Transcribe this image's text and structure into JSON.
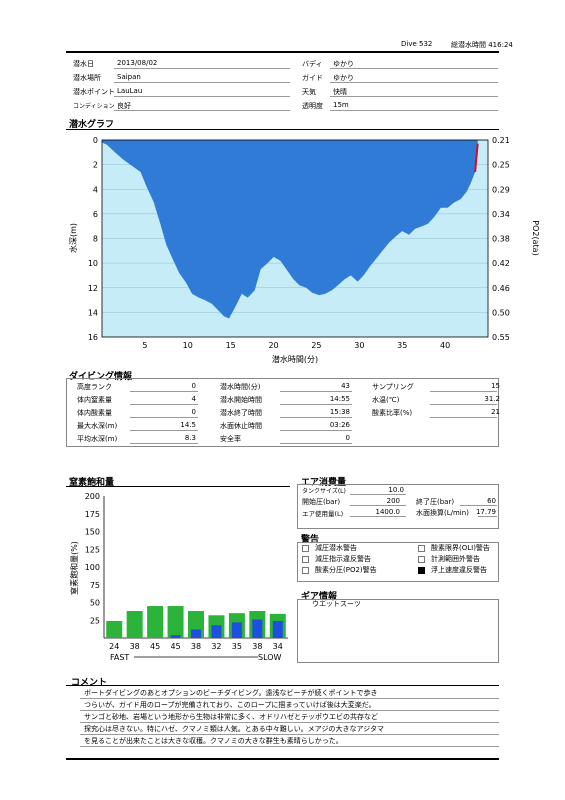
{
  "header": {
    "dive_label": "Dive 532",
    "total_label": "総潜水時間 416:24"
  },
  "info": {
    "date": {
      "label": "潜水日",
      "value": "2013/08/02"
    },
    "place": {
      "label": "潜水場所",
      "value": "Saipan"
    },
    "point": {
      "label": "潜水ポイント",
      "value": "LauLau"
    },
    "condition": {
      "label": "コンディション",
      "value": "良好"
    },
    "buddy": {
      "label": "バディ",
      "value": "ゆかり"
    },
    "guide": {
      "label": "ガイド",
      "value": "ゆかり"
    },
    "weather": {
      "label": "天気",
      "value": "快晴"
    },
    "visibility": {
      "label": "透明度",
      "value": "15m"
    }
  },
  "graph": {
    "title": "潜水グラフ",
    "chart_data": {
      "type": "area",
      "xlabel": "潜水時間(分)",
      "ylabel": "水深(m)",
      "y2label": "PO2(ata)",
      "xlim": [
        0,
        45
      ],
      "ylim": [
        16,
        0
      ],
      "xticks": [
        "5",
        "10",
        "15",
        "20",
        "25",
        "30",
        "35",
        "40"
      ],
      "yticks": [
        "0",
        "2",
        "4",
        "6",
        "8",
        "10",
        "12",
        "14",
        "16"
      ],
      "y2ticks": [
        "0.21",
        "0.25",
        "0.29",
        "0.34",
        "0.38",
        "0.42",
        "0.46",
        "0.50",
        "0.55"
      ],
      "series": [
        {
          "x": [
            0,
            0.6,
            1.5,
            2.5,
            3.5,
            4.5,
            5.2,
            6,
            6.8,
            7.5,
            8.2,
            9,
            9.8,
            10.5,
            11.3,
            12,
            12.8,
            13.5,
            14.2,
            14.8,
            15.5,
            16.3,
            17,
            17.8,
            18.5,
            19.3,
            20,
            20.8,
            21.5,
            22.3,
            23,
            23.8,
            24.5,
            25.3,
            26,
            26.8,
            27.5,
            28.3,
            29,
            29.8,
            30.5,
            31.3,
            32,
            32.8,
            33.5,
            34.3,
            35,
            35.8,
            36.5,
            37.3,
            38,
            38.8,
            39.5,
            40.3,
            41,
            41.8,
            42.5,
            43,
            43.5,
            43.8
          ],
          "y": [
            0.2,
            0.4,
            1.0,
            1.6,
            2.1,
            2.6,
            3.8,
            5.0,
            6.8,
            8.5,
            9.6,
            10.8,
            11.6,
            12.5,
            12.8,
            13.0,
            13.3,
            13.8,
            14.3,
            14.5,
            13.6,
            12.5,
            12.8,
            12.2,
            10.5,
            10.0,
            9.5,
            9.8,
            10.5,
            11.3,
            11.8,
            12.0,
            12.4,
            12.6,
            12.5,
            12.2,
            11.8,
            11.3,
            11.0,
            11.5,
            11.0,
            10.2,
            9.6,
            8.9,
            8.3,
            7.8,
            7.4,
            7.7,
            7.2,
            7.0,
            6.8,
            6.2,
            5.5,
            5.5,
            5.1,
            4.8,
            4.2,
            3.5,
            2.6,
            0.3
          ]
        }
      ]
    }
  },
  "diving": {
    "title": "ダイビング情報",
    "col1": [
      {
        "label": "高度ランク",
        "value": "0"
      },
      {
        "label": "体内窒素量",
        "value": "4"
      },
      {
        "label": "体内酸素量",
        "value": "0"
      },
      {
        "label": "最大水深(m)",
        "value": "14.5"
      },
      {
        "label": "平均水深(m)",
        "value": "8.3"
      }
    ],
    "col2": [
      {
        "label": "潜水時間(分)",
        "value": "43"
      },
      {
        "label": "潜水開始時間",
        "value": "14:55"
      },
      {
        "label": "潜水終了時間",
        "value": "15:38"
      },
      {
        "label": "水面休止時間",
        "value": "03:26"
      },
      {
        "label": "安全率",
        "value": "0"
      }
    ],
    "col3": [
      {
        "label": "サンプリング",
        "value": "15"
      },
      {
        "label": "水温(℃)",
        "value": "31.2"
      },
      {
        "label": "酸素比率(%)",
        "value": "21"
      }
    ]
  },
  "nitrogen": {
    "title": "窒素飽和量",
    "chart_data": {
      "type": "bar",
      "ylabel": "窒素飽和量(%)",
      "ylim": [
        0,
        200
      ],
      "yticks": [
        "25",
        "50",
        "75",
        "100",
        "125",
        "150",
        "175",
        "200"
      ],
      "categories": [
        "24",
        "38",
        "45",
        "45",
        "38",
        "32",
        "35",
        "38",
        "34"
      ],
      "series": [
        {
          "values": [
            24,
            38,
            45,
            45,
            38,
            32,
            35,
            38,
            34
          ]
        },
        {
          "values": [
            0,
            0,
            0,
            4,
            12,
            18,
            22,
            26,
            24
          ]
        }
      ],
      "fast_label": "FAST",
      "slow_label": "SLOW"
    }
  },
  "air": {
    "title": "エア消費量",
    "tank": {
      "label": "タンクサイズ(L)",
      "value": "10.0"
    },
    "start": {
      "label": "開始圧(bar)",
      "value": "200"
    },
    "end": {
      "label": "終了圧(bar)",
      "value": "60"
    },
    "used": {
      "label": "エア使用量(L)",
      "value": "1400.0"
    },
    "surface": {
      "label": "水面換算(L/min)",
      "value": "17.79"
    }
  },
  "warning": {
    "title": "警告",
    "items": [
      {
        "label": "減圧潜水警告",
        "checked": false
      },
      {
        "label": "酸素限界(OLI)警告",
        "checked": false
      },
      {
        "label": "減圧指示違反警告",
        "checked": false
      },
      {
        "label": "計測範囲外警告",
        "checked": false
      },
      {
        "label": "酸素分圧(PO2)警告",
        "checked": false
      },
      {
        "label": "浮上速度違反警告",
        "checked": true
      }
    ]
  },
  "gear": {
    "title": "ギア情報",
    "value": "ウエットスーツ"
  },
  "comment": {
    "title": "コメント",
    "lines": [
      "ボートダイビングのあとオプションのビーチダイビング。遠浅なビーチが続くポイントで歩き",
      "つらいが、ガイド用のロープが完備されており、このロープに掴まっていけば後は大変楽だ。",
      "サンゴと砂地、岩場という地形から生物は非常に多く、オドリハゼとテッポウエビの共存など",
      "探究心は尽きない。特にハゼ、クマノミ類は人気。とある中々難しい。メアジの大きなアジタマ",
      "を見ることが出来たことは大きな収穫。クマノミの大きな群生も素晴らしかった。"
    ]
  }
}
